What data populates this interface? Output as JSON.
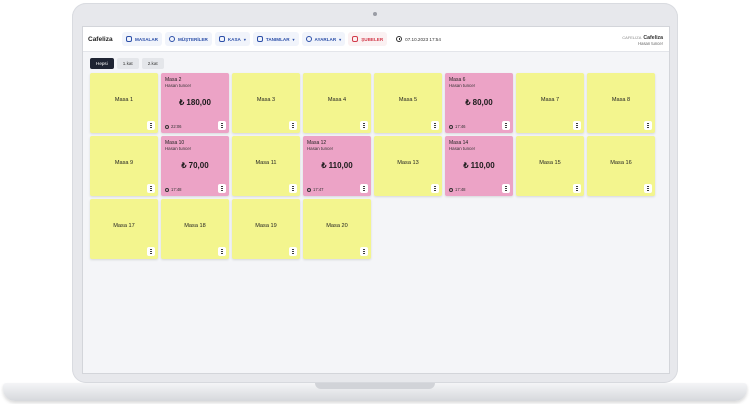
{
  "app": {
    "brand": "Cafeliza"
  },
  "nav": [
    {
      "label": "MASALAR",
      "icon": "table-icon",
      "chevron": false
    },
    {
      "label": "MÜŞTERİLER",
      "icon": "user-icon",
      "chevron": false
    },
    {
      "label": "KASA",
      "icon": "cash-icon",
      "chevron": true
    },
    {
      "label": "TANIMLAR",
      "icon": "list-icon",
      "chevron": true
    },
    {
      "label": "AYARLAR",
      "icon": "gear-icon",
      "chevron": true
    },
    {
      "label": "ŞUBELER",
      "icon": "home-icon",
      "chevron": false
    }
  ],
  "header": {
    "datetime": "07.10.2023 17:54"
  },
  "user": {
    "logo_text": "CAFELIZA",
    "brand": "Cafeliza",
    "name": "Hasan tuncer"
  },
  "filters": [
    {
      "label": "Hepsi",
      "active": true
    },
    {
      "label": "1.kat",
      "active": false
    },
    {
      "label": "2.kat",
      "active": false
    }
  ],
  "tables": [
    {
      "name": "Masa 1",
      "status": "empty"
    },
    {
      "name": "Masa 2",
      "status": "occupied",
      "waiter": "Hasan tuncer",
      "amount": "₺ 180,00",
      "time": "22:06"
    },
    {
      "name": "Masa 3",
      "status": "empty"
    },
    {
      "name": "Masa 4",
      "status": "empty"
    },
    {
      "name": "Masa 5",
      "status": "empty"
    },
    {
      "name": "Masa 6",
      "status": "occupied",
      "waiter": "Hasan tuncer",
      "amount": "₺ 80,00",
      "time": "17:46"
    },
    {
      "name": "Masa 7",
      "status": "empty"
    },
    {
      "name": "Masa 8",
      "status": "empty"
    },
    {
      "name": "Masa 9",
      "status": "empty"
    },
    {
      "name": "Masa 10",
      "status": "occupied",
      "waiter": "Hasan tuncer",
      "amount": "₺ 70,00",
      "time": "17:48"
    },
    {
      "name": "Masa 11",
      "status": "empty"
    },
    {
      "name": "Masa 12",
      "status": "occupied",
      "waiter": "Hasan tuncer",
      "amount": "₺ 110,00",
      "time": "17:47"
    },
    {
      "name": "Masa 13",
      "status": "empty"
    },
    {
      "name": "Masa 14",
      "status": "occupied",
      "waiter": "Hasan tuncer",
      "amount": "₺ 110,00",
      "time": "17:48"
    },
    {
      "name": "Masa 15",
      "status": "empty"
    },
    {
      "name": "Masa 16",
      "status": "empty"
    },
    {
      "name": "Masa 17",
      "status": "empty"
    },
    {
      "name": "Masa 18",
      "status": "empty"
    },
    {
      "name": "Masa 19",
      "status": "empty"
    },
    {
      "name": "Masa 20",
      "status": "empty"
    }
  ],
  "colors": {
    "empty": "#f3f58e",
    "occupied": "#eca3c6",
    "nav_text": "#2c4fa8",
    "branch_text": "#d23a4a"
  }
}
